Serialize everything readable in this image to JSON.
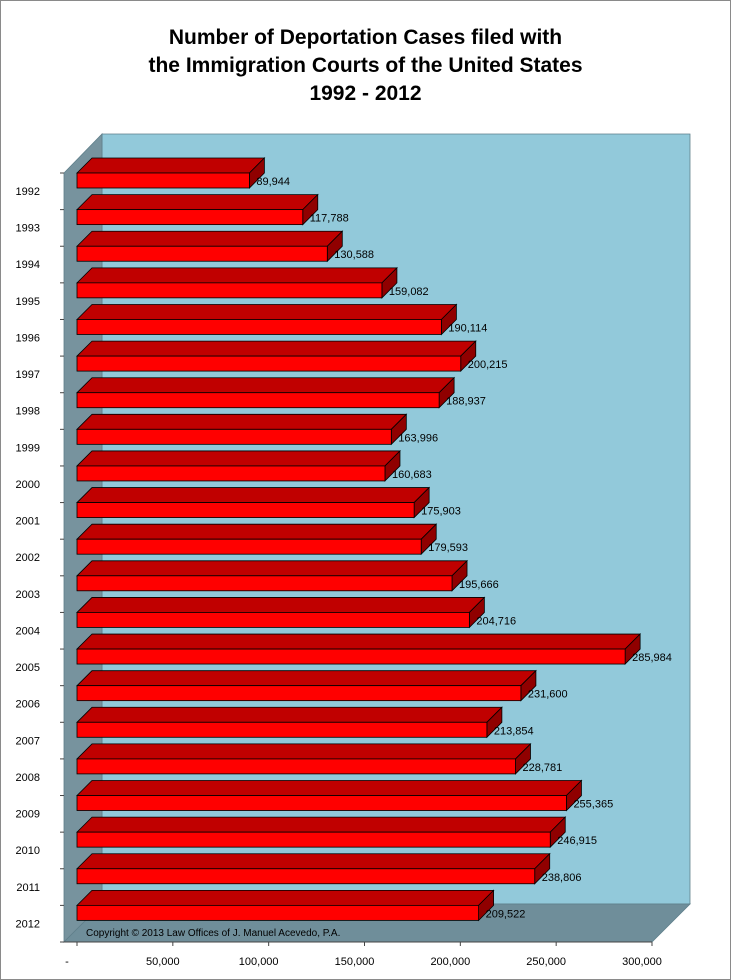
{
  "title_lines": [
    "Number of Deportation Cases filed with",
    "the Immigration Courts of the United States",
    "1992 - 2012"
  ],
  "copyright": "Copyright © 2013 Law Offices of J. Manuel Acevedo, P.A.",
  "colors": {
    "bar_front": "#ff0000",
    "bar_top": "#c00000",
    "bar_side": "#900000",
    "back_wall": "#92c9da",
    "side_wall": "#77939e",
    "floor": "#6f8e9a"
  },
  "chart_data": {
    "type": "bar",
    "orientation": "horizontal",
    "style": "3d",
    "title": "Number of Deportation Cases filed with the Immigration Courts of the United States 1992 - 2012",
    "categories": [
      "1992",
      "1993",
      "1994",
      "1995",
      "1996",
      "1997",
      "1998",
      "1999",
      "2000",
      "2001",
      "2002",
      "2003",
      "2004",
      "2005",
      "2006",
      "2007",
      "2008",
      "2009",
      "2010",
      "2011",
      "2012"
    ],
    "values": [
      89944,
      117788,
      130588,
      159082,
      190114,
      200215,
      188937,
      163996,
      160683,
      175903,
      179593,
      195666,
      204716,
      285984,
      231600,
      213854,
      228781,
      255365,
      246915,
      238806,
      209522
    ],
    "data_labels": [
      "89,944",
      "117,788",
      "130,588",
      "159,082",
      "190,114",
      "200,215",
      "188,937",
      "163,996",
      "160,683",
      "175,903",
      "179,593",
      "195,666",
      "204,716",
      "285,984",
      "231,600",
      "213,854",
      "228,781",
      "255,365",
      "246,915",
      "238,806",
      "209,522"
    ],
    "xlim": [
      0,
      300000
    ],
    "x_ticks": [
      0,
      50000,
      100000,
      150000,
      200000,
      250000,
      300000
    ],
    "x_tick_labels": [
      "-",
      "50,000",
      "100,000",
      "150,000",
      "200,000",
      "250,000",
      "300,000"
    ],
    "xlabel": "",
    "ylabel": "",
    "grid": false,
    "legend": "none"
  }
}
